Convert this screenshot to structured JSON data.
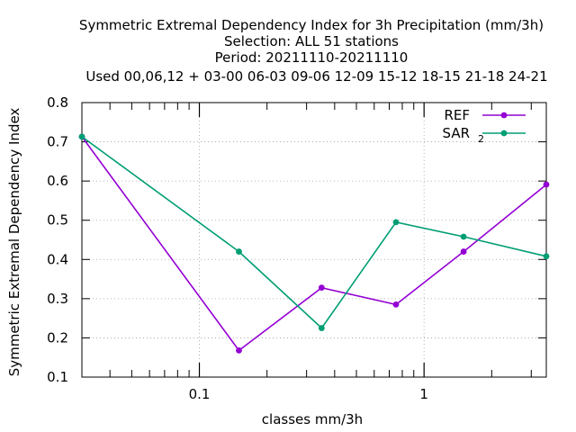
{
  "chart_data": {
    "type": "line",
    "title_lines": [
      "Symmetric Extremal Dependency Index  for 3h Precipitation (mm/3h)",
      "Selection: ALL     51 stations",
      "Period: 20211110-20211110",
      "Used  00,06,12  + 03-00 06-03 09-06 12-09 15-12 18-15 21-18 24-21"
    ],
    "xlabel": "classes mm/3h",
    "ylabel": "Symmetric Extremal Dependency Index",
    "x_scale": "log",
    "xlim": [
      0.03,
      3.5
    ],
    "ylim": [
      0.1,
      0.8
    ],
    "x_ticks": [
      {
        "value": 0.1,
        "label": "0.1"
      },
      {
        "value": 1,
        "label": "1"
      }
    ],
    "y_ticks": [
      {
        "value": 0.1,
        "label": "0.1"
      },
      {
        "value": 0.2,
        "label": "0.2"
      },
      {
        "value": 0.3,
        "label": "0.3"
      },
      {
        "value": 0.4,
        "label": "0.4"
      },
      {
        "value": 0.5,
        "label": "0.5"
      },
      {
        "value": 0.6,
        "label": "0.6"
      },
      {
        "value": 0.7,
        "label": "0.7"
      },
      {
        "value": 0.8,
        "label": "0.8"
      }
    ],
    "grid": true,
    "legend_position": "top-right",
    "series": [
      {
        "name": "REF",
        "color": "#9400d3",
        "x": [
          0.03,
          0.15,
          0.35,
          0.75,
          1.5,
          3.5
        ],
        "values": [
          0.713,
          0.168,
          0.328,
          0.285,
          0.42,
          0.591
        ]
      },
      {
        "name": "SAR",
        "name_subscript": "2",
        "color": "#009e73",
        "x": [
          0.03,
          0.15,
          0.35,
          0.75,
          1.5,
          3.5
        ],
        "values": [
          0.713,
          0.42,
          0.225,
          0.495,
          0.458,
          0.408
        ]
      }
    ]
  }
}
